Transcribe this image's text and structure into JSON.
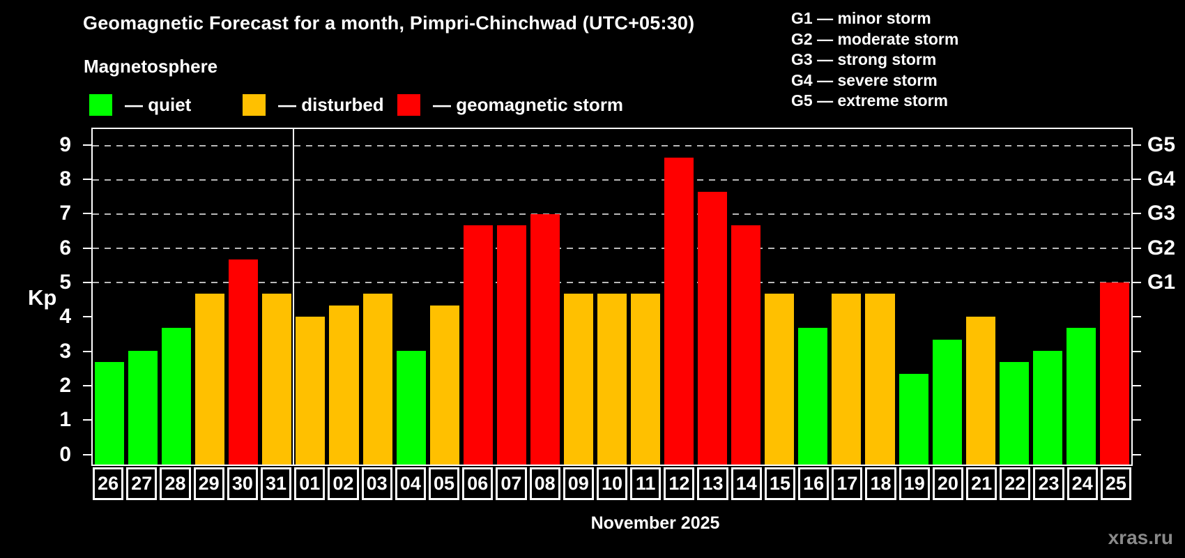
{
  "title": "Geomagnetic Forecast for a month, Pimpri-Chinchwad (UTC+05:30)",
  "subtitle": "Magnetosphere",
  "legend": {
    "items": [
      {
        "key": "quiet",
        "label": "— quiet",
        "color": "#00ff00"
      },
      {
        "key": "disturbed",
        "label": "— disturbed",
        "color": "#ffc000"
      },
      {
        "key": "storm",
        "label": "— geomagnetic storm",
        "color": "#ff0000"
      }
    ]
  },
  "g_legend": [
    "G1 — minor storm",
    "G2 — moderate storm",
    "G3 — strong storm",
    "G4 — severe storm",
    "G5 — extreme storm"
  ],
  "month_caption": "November 2025",
  "watermark": "xras.ru",
  "chart_data": {
    "type": "bar",
    "title": "Geomagnetic Forecast for a month, Pimpri-Chinchwad (UTC+05:30)",
    "xlabel": "November 2025",
    "ylabel": "Kp",
    "ylim": [
      -0.33,
      9.5
    ],
    "grid": "dashed horizontal at Kp 5-9 only",
    "legend_position": "top-left",
    "categories": [
      "26",
      "27",
      "28",
      "29",
      "30",
      "31",
      "01",
      "02",
      "03",
      "04",
      "05",
      "06",
      "07",
      "08",
      "09",
      "10",
      "11",
      "12",
      "13",
      "14",
      "15",
      "16",
      "17",
      "18",
      "19",
      "20",
      "21",
      "22",
      "23",
      "24",
      "25"
    ],
    "values": [
      2.67,
      3,
      3.67,
      4.67,
      5.67,
      4.67,
      4,
      4.33,
      4.67,
      3,
      4.33,
      6.67,
      6.67,
      7,
      4.67,
      4.67,
      4.67,
      8.67,
      7.67,
      6.67,
      4.67,
      3.67,
      4.67,
      4.67,
      2.33,
      3.33,
      4,
      2.67,
      3,
      3.67,
      5
    ],
    "statuses": [
      "quiet",
      "quiet",
      "quiet",
      "disturbed",
      "storm",
      "disturbed",
      "disturbed",
      "disturbed",
      "disturbed",
      "quiet",
      "disturbed",
      "storm",
      "storm",
      "storm",
      "disturbed",
      "disturbed",
      "disturbed",
      "storm",
      "storm",
      "storm",
      "disturbed",
      "quiet",
      "disturbed",
      "disturbed",
      "quiet",
      "quiet",
      "disturbed",
      "quiet",
      "quiet",
      "quiet",
      "storm"
    ],
    "y_ticks": [
      0,
      1,
      2,
      3,
      4,
      5,
      6,
      7,
      8,
      9
    ],
    "right_axis_labels": [
      {
        "label": "G1",
        "kp": 5
      },
      {
        "label": "G2",
        "kp": 6
      },
      {
        "label": "G3",
        "kp": 7
      },
      {
        "label": "G4",
        "kp": 8
      },
      {
        "label": "G5",
        "kp": 9
      }
    ],
    "g_gridlines": [
      5,
      6,
      7,
      8,
      9
    ],
    "month_separator_after_index": 5
  }
}
